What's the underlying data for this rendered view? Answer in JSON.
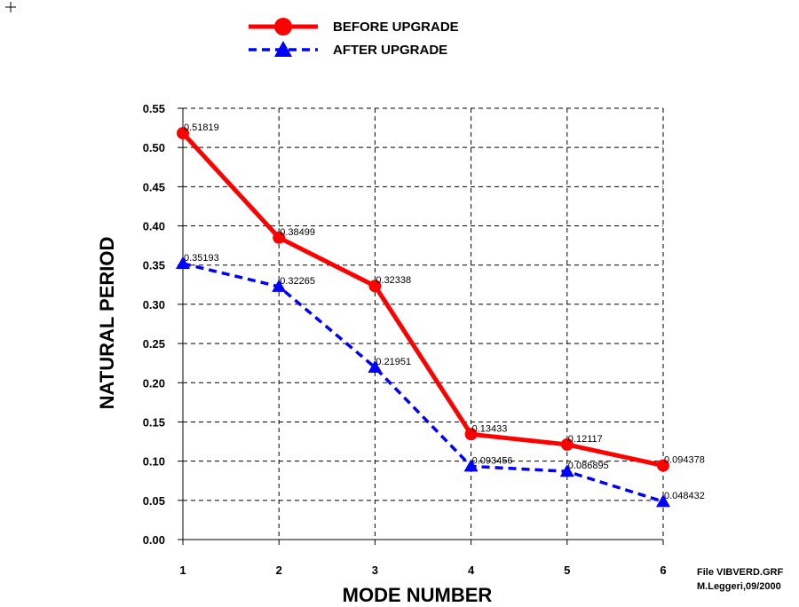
{
  "chart_data": {
    "type": "line",
    "x": [
      1,
      2,
      3,
      4,
      5,
      6
    ],
    "xlabel": "MODE NUMBER",
    "ylabel": "NATURAL PERIOD",
    "xlim": [
      1,
      6
    ],
    "ylim": [
      0,
      0.55
    ],
    "x_ticks": [
      "1",
      "2",
      "3",
      "4",
      "5",
      "6"
    ],
    "y_ticks": [
      "0.00",
      "0.05",
      "0.10",
      "0.15",
      "0.20",
      "0.25",
      "0.30",
      "0.35",
      "0.40",
      "0.45",
      "0.50",
      "0.55"
    ],
    "grid": true,
    "legend_position": "top-center",
    "series": [
      {
        "name": "BEFORE UPGRADE",
        "color": "#ff0000",
        "line_style": "solid",
        "marker": "circle",
        "values": [
          0.51819,
          0.38499,
          0.32338,
          0.13433,
          0.12117,
          0.094378
        ],
        "labels": [
          "0.51819",
          "0.38499",
          "0.32338",
          "0.13433",
          "0.12117",
          "0.094378"
        ]
      },
      {
        "name": "AFTER UPGRADE",
        "color": "#0000ff",
        "line_style": "dashed",
        "marker": "triangle",
        "values": [
          0.35193,
          0.32265,
          0.21951,
          0.093456,
          0.086895,
          0.048432
        ],
        "labels": [
          "0.35193",
          "0.32265",
          "0.21951",
          "0.093456",
          "0.086895",
          "0.048432"
        ]
      }
    ],
    "footnote": [
      "File VIBVERD.GRF",
      "M.Leggeri,09/2000"
    ]
  }
}
